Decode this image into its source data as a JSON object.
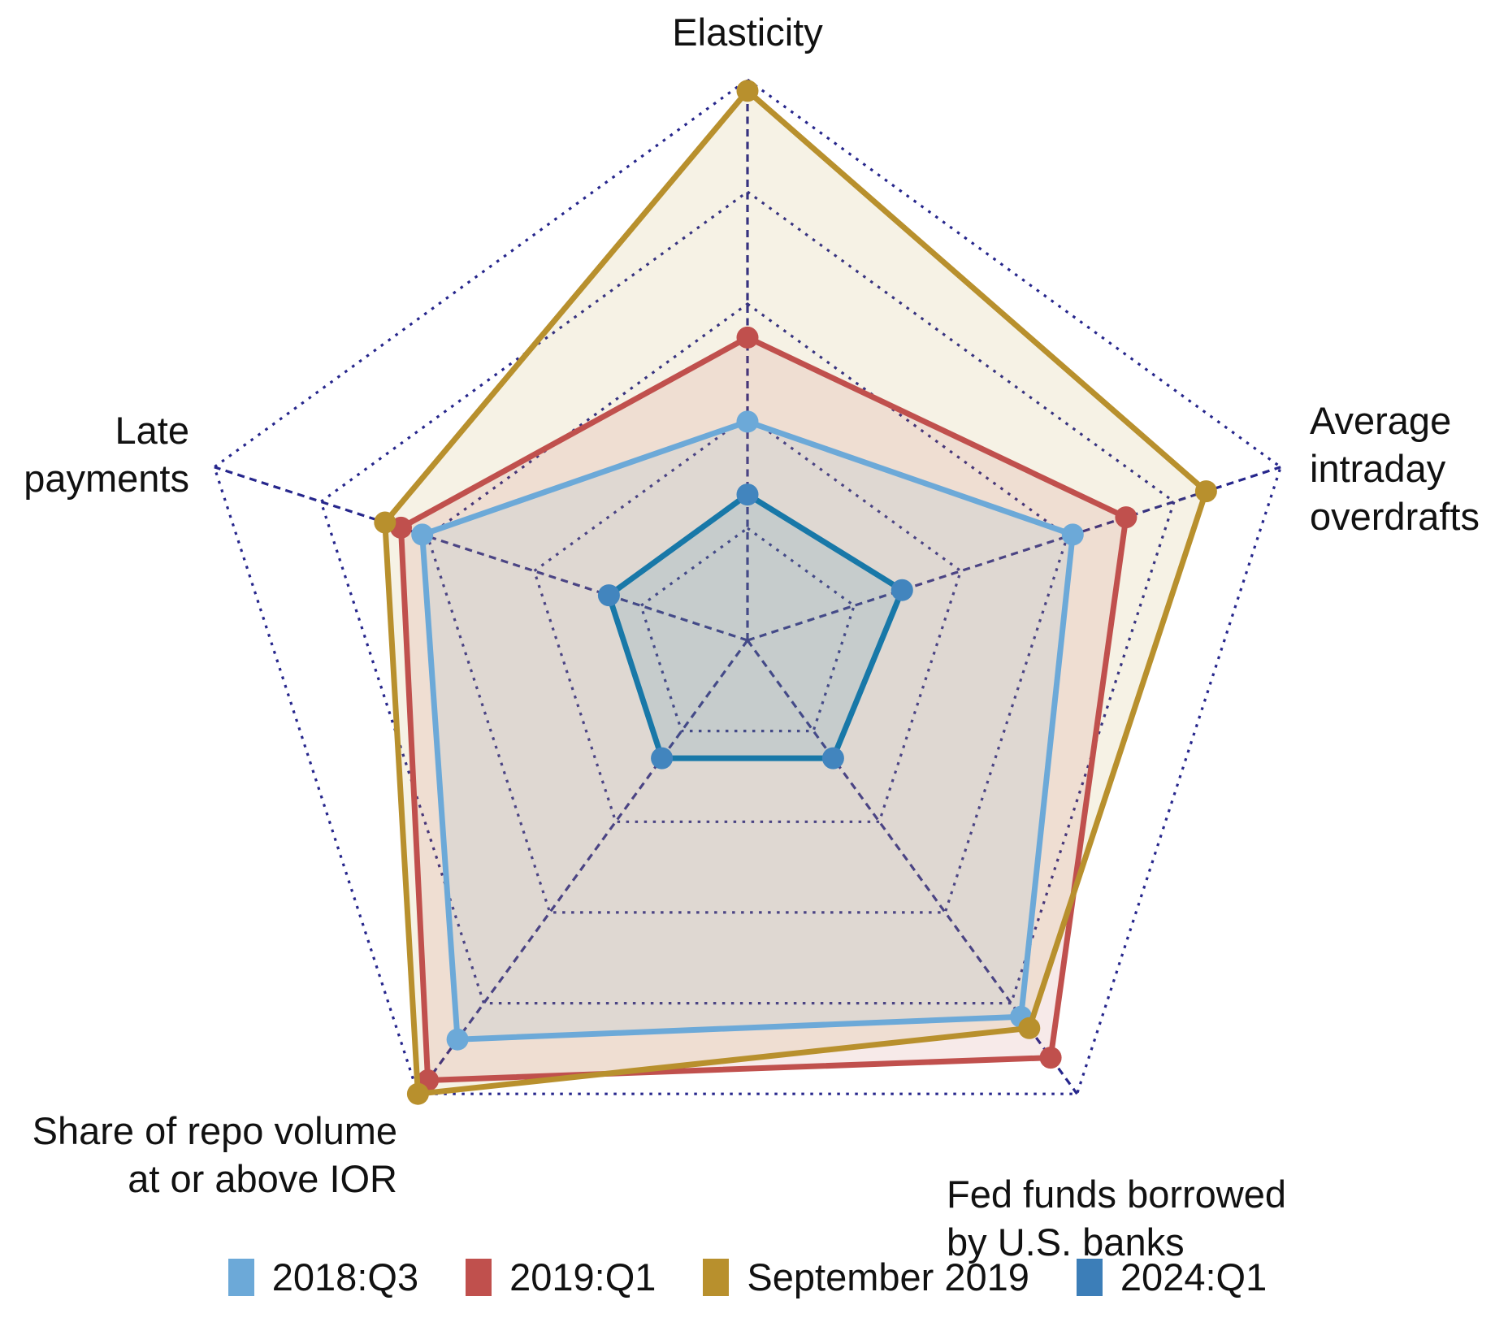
{
  "labels": {
    "elasticity": "Elasticity",
    "overdrafts": "Average\nintraday\noverdrafts",
    "fedfunds": "Fed funds borrowed\nby U.S. banks",
    "repo": "Share of repo volume\nat or above IOR",
    "late": "Late\npayments"
  },
  "legend": {
    "items": [
      {
        "label": "2018:Q3",
        "color": "#6CA9D8"
      },
      {
        "label": "2019:Q1",
        "color": "#C0504D"
      },
      {
        "label": "September 2019",
        "color": "#B8902D"
      },
      {
        "label": "2024:Q1",
        "color": "#3C7EB8"
      }
    ]
  },
  "chart_data": {
    "type": "radar",
    "categories": [
      "Elasticity",
      "Average intraday overdrafts",
      "Fed funds borrowed by U.S. banks",
      "Share of repo volume at or above IOR",
      "Late payments"
    ],
    "axis_count": 5,
    "value_range": [
      0,
      1
    ],
    "scale_note": "No numeric tick labels shown; values estimated against 5 dotted grid rings at 0.2, 0.4, 0.6, 0.8, 1.0",
    "grid_levels": [
      0.2,
      0.4,
      0.6,
      0.8,
      1.0
    ],
    "grid_color": "#26268C",
    "grid_style": "dotted pentagon rings with dashed radial spokes",
    "legend_position": "bottom",
    "series": [
      {
        "name": "2018:Q3",
        "color": "#6CA9D8",
        "marker_color": "#6CA9D8",
        "values": [
          0.39,
          0.61,
          0.83,
          0.88,
          0.61
        ]
      },
      {
        "name": "2019:Q1",
        "color": "#C0504D",
        "marker_color": "#C0504D",
        "values": [
          0.54,
          0.71,
          0.92,
          0.97,
          0.65
        ]
      },
      {
        "name": "September 2019",
        "color": "#B8902D",
        "marker_color": "#B8902D",
        "values": [
          0.98,
          0.86,
          0.855,
          1.0,
          0.68
        ]
      },
      {
        "name": "2024:Q1",
        "color": "#1878A8",
        "marker_color": "#4285BE",
        "values": [
          0.26,
          0.29,
          0.26,
          0.26,
          0.26
        ]
      }
    ]
  }
}
